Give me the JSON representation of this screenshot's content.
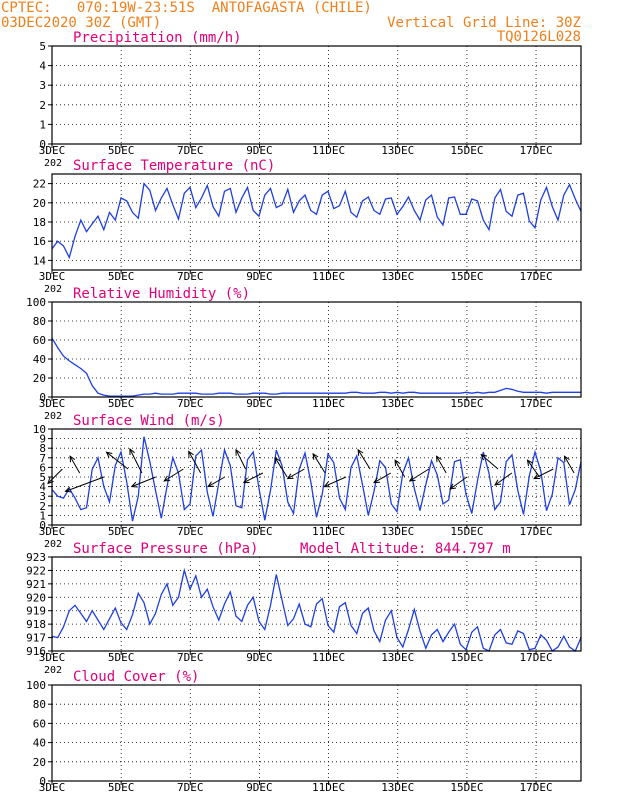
{
  "header": {
    "left_line1": "CPTEC:   070:19W-23:51S  ANTOFAGASTA (CHILE)",
    "left_line2": "03DEC2020 30Z (GMT)",
    "right_line1": "Vertical Grid Line: 30Z",
    "right_line2": "TQ0126L028"
  },
  "colors": {
    "header": "#f07f1a",
    "title": "#e0007a",
    "series": "#1f3fe0",
    "vector": "#000000"
  },
  "x_tick_labels": [
    "3DEC",
    "5DEC",
    "7DEC",
    "9DEC",
    "11DEC",
    "13DEC",
    "15DEC",
    "17DEC"
  ],
  "x_tick_sublabel": "202",
  "chart_data": [
    {
      "id": "precip",
      "type": "line",
      "title": "Precipitation (mm/h)",
      "ylim": [
        0,
        5
      ],
      "yticks": [
        "0",
        "1",
        "2",
        "3",
        "4",
        "5"
      ],
      "grid": true,
      "x_start_day": 3,
      "x_end_day": 18.3,
      "series": [
        {
          "values": []
        }
      ]
    },
    {
      "id": "temp",
      "type": "line",
      "title": "Surface Temperature (nC)",
      "ylim": [
        13,
        23
      ],
      "yticks": [
        "14",
        "16",
        "18",
        "20",
        "22"
      ],
      "grid": true,
      "x_start_day": 3,
      "x_end_day": 18.3,
      "series": [
        {
          "values": [
            15.2,
            16.0,
            15.5,
            14.3,
            16.5,
            18.2,
            17.0,
            17.8,
            18.6,
            17.2,
            19.0,
            18.2,
            20.5,
            20.2,
            19.0,
            18.4,
            22.0,
            21.3,
            19.2,
            20.5,
            21.5,
            19.8,
            18.3,
            21.0,
            21.6,
            19.5,
            20.5,
            21.8,
            19.6,
            18.6,
            21.2,
            21.5,
            19.0,
            20.5,
            21.6,
            19.2,
            18.6,
            20.8,
            21.5,
            19.5,
            19.8,
            21.4,
            19.0,
            20.2,
            20.8,
            19.2,
            18.8,
            20.8,
            21.2,
            19.4,
            19.7,
            21.2,
            19.0,
            18.5,
            20.2,
            20.6,
            19.2,
            18.8,
            20.4,
            20.5,
            18.8,
            19.6,
            20.6,
            19.2,
            18.2,
            20.3,
            20.8,
            18.5,
            17.7,
            20.5,
            20.6,
            18.8,
            18.8,
            20.4,
            20.2,
            18.2,
            17.2,
            20.5,
            21.4,
            19.1,
            18.6,
            20.8,
            21.0,
            18.1,
            17.4,
            20.3,
            21.6,
            19.6,
            18.2,
            20.8,
            21.9,
            20.4,
            19.1
          ]
        }
      ]
    },
    {
      "id": "rh",
      "type": "line",
      "title": "Relative Humidity (%)",
      "ylim": [
        0,
        100
      ],
      "yticks": [
        "0",
        "20",
        "40",
        "60",
        "80",
        "100"
      ],
      "grid": true,
      "x_start_day": 3,
      "x_end_day": 18.3,
      "series": [
        {
          "values": [
            62,
            52,
            43,
            38,
            34,
            30,
            25,
            12,
            4,
            2,
            1,
            1,
            1,
            1,
            1,
            2,
            3,
            3,
            4,
            3,
            3,
            3,
            4,
            4,
            4,
            4,
            3,
            3,
            3,
            4,
            4,
            4,
            3,
            3,
            3,
            4,
            4,
            4,
            3,
            3,
            4,
            4,
            4,
            4,
            4,
            4,
            4,
            4,
            4,
            4,
            4,
            4,
            5,
            5,
            4,
            4,
            4,
            5,
            5,
            4,
            5,
            4,
            5,
            5,
            4,
            4,
            4,
            4,
            4,
            4,
            4,
            4,
            5,
            4,
            5,
            4,
            5,
            5,
            7,
            9,
            8,
            6,
            5,
            5,
            5,
            5,
            4,
            5,
            5,
            5,
            5,
            5,
            5
          ]
        }
      ]
    },
    {
      "id": "wind",
      "type": "line",
      "title": "Surface Wind (m/s)",
      "ylim": [
        0,
        10
      ],
      "yticks": [
        "0",
        "1",
        "2",
        "3",
        "4",
        "5",
        "6",
        "7",
        "8",
        "9",
        "10"
      ],
      "grid": true,
      "x_start_day": 3,
      "x_end_day": 18.3,
      "series": [
        {
          "values": [
            3.7,
            3.0,
            2.8,
            3.8,
            2.8,
            1.6,
            1.8,
            5.8,
            7.0,
            4.0,
            2.4,
            6.2,
            7.6,
            4.5,
            0.4,
            3.0,
            9.2,
            6.6,
            3.6,
            0.7,
            4.0,
            7.0,
            5.4,
            1.6,
            2.2,
            7.2,
            7.8,
            3.4,
            0.9,
            4.4,
            7.8,
            6.2,
            2.0,
            1.8,
            6.8,
            7.6,
            3.8,
            0.5,
            3.6,
            7.8,
            6.2,
            2.4,
            1.2,
            5.8,
            7.5,
            4.5,
            0.8,
            3.2,
            7.4,
            6.5,
            2.8,
            1.6,
            6.0,
            7.2,
            4.2,
            1.0,
            3.5,
            6.7,
            6.0,
            2.2,
            1.4,
            5.4,
            7.0,
            3.8,
            1.5,
            4.2,
            6.7,
            5.2,
            2.2,
            2.6,
            6.6,
            6.8,
            3.2,
            1.2,
            4.6,
            7.6,
            5.4,
            1.6,
            2.4,
            6.6,
            7.3,
            3.6,
            1.1,
            5.1,
            7.6,
            5.6,
            1.5,
            3.2,
            7.0,
            6.5,
            2.1,
            3.7,
            6.6
          ]
        }
      ],
      "vectors": [
        {
          "day": 3.3,
          "u": -0.6,
          "v": -0.6
        },
        {
          "day": 3.8,
          "u": -0.4,
          "v": 0.7
        },
        {
          "day": 4.5,
          "u": -1.6,
          "v": -0.6
        },
        {
          "day": 5.2,
          "u": -0.9,
          "v": 0.7
        },
        {
          "day": 5.6,
          "u": -0.5,
          "v": 1.0
        },
        {
          "day": 6.0,
          "u": -1.0,
          "v": -0.4
        },
        {
          "day": 6.8,
          "u": -0.8,
          "v": -0.5
        },
        {
          "day": 7.3,
          "u": -0.5,
          "v": 0.9
        },
        {
          "day": 8.0,
          "u": -0.7,
          "v": -0.4
        },
        {
          "day": 8.6,
          "u": -0.4,
          "v": 0.8
        },
        {
          "day": 9.1,
          "u": -0.8,
          "v": -0.4
        },
        {
          "day": 9.8,
          "u": -0.5,
          "v": 0.8
        },
        {
          "day": 10.3,
          "u": -0.7,
          "v": -0.4
        },
        {
          "day": 10.9,
          "u": -0.5,
          "v": 0.8
        },
        {
          "day": 11.5,
          "u": -0.9,
          "v": -0.4
        },
        {
          "day": 12.2,
          "u": -0.5,
          "v": 0.8
        },
        {
          "day": 12.8,
          "u": -0.7,
          "v": -0.4
        },
        {
          "day": 13.2,
          "u": -0.4,
          "v": 0.7
        },
        {
          "day": 13.9,
          "u": -0.8,
          "v": -0.5
        },
        {
          "day": 14.4,
          "u": -0.4,
          "v": 0.7
        },
        {
          "day": 15.0,
          "u": -0.7,
          "v": -0.5
        },
        {
          "day": 15.9,
          "u": -0.7,
          "v": 0.6
        },
        {
          "day": 16.3,
          "u": -0.7,
          "v": -0.5
        },
        {
          "day": 17.1,
          "u": -0.5,
          "v": 0.7
        },
        {
          "day": 17.5,
          "u": -0.8,
          "v": -0.4
        },
        {
          "day": 18.1,
          "u": -0.4,
          "v": 0.7
        }
      ]
    },
    {
      "id": "pres",
      "type": "line",
      "title": "Surface Pressure (hPa)",
      "title2": "Model Altitude: 844.797 m",
      "ylim": [
        916,
        923
      ],
      "yticks": [
        "916",
        "917",
        "918",
        "919",
        "920",
        "921",
        "922",
        "923"
      ],
      "grid": true,
      "x_start_day": 3,
      "x_end_day": 18.3,
      "series": [
        {
          "values": [
            917.1,
            917.0,
            917.8,
            919.0,
            919.4,
            918.8,
            918.2,
            919.0,
            918.3,
            917.6,
            918.4,
            919.2,
            918.1,
            917.6,
            918.7,
            920.3,
            919.6,
            918.0,
            918.8,
            920.2,
            921.0,
            919.4,
            920.0,
            922.0,
            920.6,
            921.6,
            920.0,
            920.6,
            919.3,
            918.3,
            919.5,
            920.4,
            918.6,
            918.2,
            919.4,
            920.0,
            918.2,
            917.6,
            919.4,
            921.7,
            919.8,
            917.9,
            918.4,
            919.5,
            918.0,
            917.8,
            919.5,
            919.9,
            917.9,
            917.4,
            919.3,
            919.6,
            917.9,
            917.3,
            918.8,
            919.2,
            917.5,
            916.7,
            918.3,
            919.0,
            917.0,
            916.3,
            917.6,
            919.1,
            917.5,
            916.2,
            917.2,
            917.6,
            916.7,
            917.4,
            918.0,
            916.5,
            916.1,
            917.4,
            917.8,
            916.2,
            916.0,
            917.2,
            917.6,
            916.6,
            916.5,
            917.5,
            917.3,
            916.1,
            916.2,
            917.2,
            916.8,
            916.0,
            916.3,
            917.1,
            916.3,
            916.0,
            917.0
          ]
        }
      ]
    },
    {
      "id": "cloud",
      "type": "line",
      "title": "Cloud Cover (%)",
      "ylim": [
        0,
        100
      ],
      "yticks": [
        "0",
        "20",
        "40",
        "60",
        "80",
        "100"
      ],
      "grid": true,
      "x_start_day": 3,
      "x_end_day": 18.3,
      "series": [
        {
          "values": []
        }
      ]
    }
  ]
}
